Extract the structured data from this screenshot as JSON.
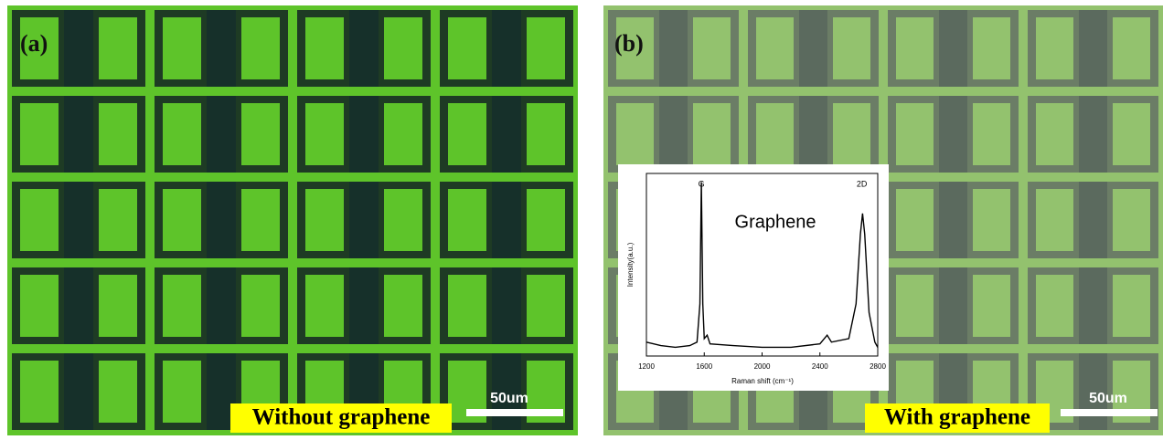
{
  "panels": [
    {
      "label": "(a)",
      "caption": "Without graphene",
      "scale_bar": "50um"
    },
    {
      "label": "(b)",
      "caption": "With graphene",
      "scale_bar": "50um"
    }
  ],
  "chart_data": {
    "type": "line",
    "title": "Graphene",
    "x": [
      1200,
      1300,
      1400,
      1500,
      1550,
      1570,
      1580,
      1590,
      1600,
      1620,
      1640,
      1800,
      2000,
      2200,
      2400,
      2450,
      2480,
      2600,
      2650,
      2680,
      2695,
      2710,
      2740,
      2780,
      2800
    ],
    "values": [
      8,
      6,
      5,
      6,
      8,
      30,
      100,
      30,
      10,
      12,
      7,
      6,
      5,
      5,
      7,
      12,
      8,
      10,
      30,
      70,
      82,
      70,
      25,
      8,
      5
    ],
    "xlim": [
      1200,
      2800
    ],
    "xticks": [
      1200,
      1600,
      2000,
      2400,
      2800
    ],
    "ylim": [
      0,
      105
    ],
    "xlabel": "Raman shift (cm⁻¹)",
    "ylabel": "Intensity(a.u.)",
    "annotations": [
      {
        "text": "G",
        "x": 1580
      },
      {
        "text": "2D",
        "x": 2690
      }
    ],
    "color": "#000000"
  }
}
